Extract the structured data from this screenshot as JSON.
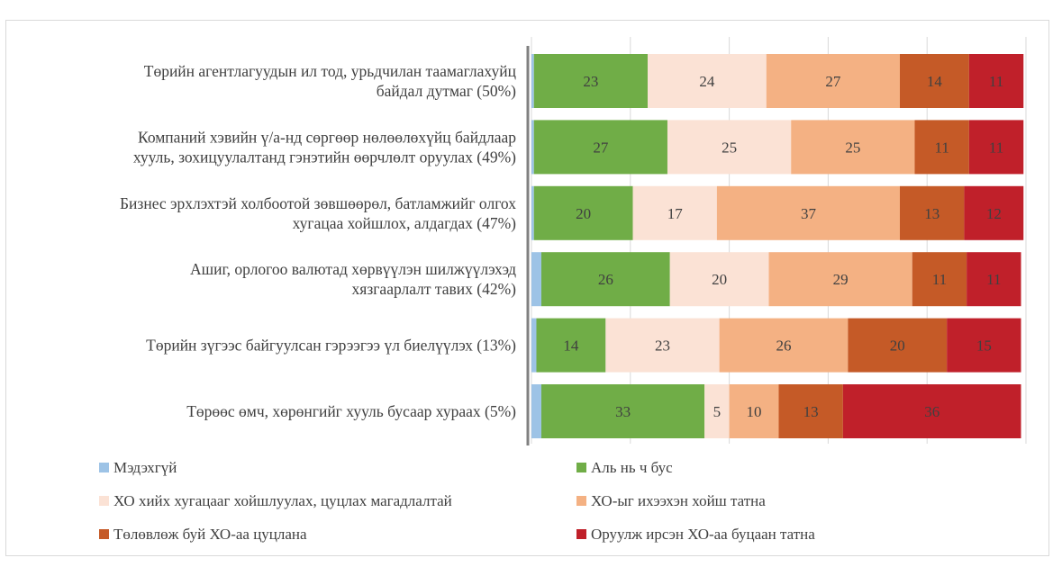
{
  "chart_data": {
    "type": "bar",
    "orientation": "horizontal",
    "stacked": true,
    "categories": [
      [
        "Төрийн агентлагуудын ил тод, урьдчилан таамаглахуйц",
        "байдал дутмаг (50%)"
      ],
      [
        "Компаний хэвийн ү/а-нд сөргөөр нөлөөлөхүйц байдлаар",
        "хууль, зохицуулалтанд гэнэтийн өөрчлөлт оруулах (49%)"
      ],
      [
        "Бизнес эрхлэхтэй холбоотой зөвшөөрөл, батламжийг олгох",
        "хугацаа хойшлох, алдагдах (47%)"
      ],
      [
        "Ашиг, орлогоо валютад хөрвүүлэн шилжүүлэхэд",
        "хязгаарлалт тавих (42%)"
      ],
      [
        "Төрийн зүгээс байгуулсан гэрээгээ үл биелүүлэх (13%)"
      ],
      [
        "Төрөөс өмч, хөрөнгийг хууль бусаар хураах (5%)"
      ]
    ],
    "series": [
      {
        "name": "Мэдэхгүй",
        "color": "#9dc3e6",
        "values": [
          0.5,
          0.5,
          0.5,
          2,
          1,
          2
        ],
        "labels": [
          "",
          "",
          "",
          "",
          "",
          ""
        ]
      },
      {
        "name": "Аль нь ч бус",
        "color": "#70ad47",
        "values": [
          23,
          27,
          20,
          26,
          14,
          33
        ],
        "labels": [
          "23",
          "27",
          "20",
          "26",
          "14",
          "33"
        ]
      },
      {
        "name": "ХО хийх хугацааг хойшлуулах, цуцлах магадлалтай",
        "color": "#fbe2d5",
        "values": [
          24,
          25,
          17,
          20,
          23,
          5
        ],
        "labels": [
          "24",
          "25",
          "17",
          "20",
          "23",
          "5"
        ]
      },
      {
        "name": "ХО-ыг ихээхэн хойш татна",
        "color": "#f4b183",
        "values": [
          27,
          25,
          37,
          29,
          26,
          10
        ],
        "labels": [
          "27",
          "25",
          "37",
          "29",
          "26",
          "10"
        ]
      },
      {
        "name": "Төлөвлөж буй ХО-аа цуцлана",
        "color": "#c55a27",
        "values": [
          14,
          11,
          13,
          11,
          20,
          13
        ],
        "labels": [
          "14",
          "11",
          "13",
          "11",
          "20",
          "13"
        ]
      },
      {
        "name": "Оруулж ирсэн ХО-аа буцаан татна",
        "color": "#c0202a",
        "values": [
          11,
          11,
          12,
          11,
          15,
          36
        ],
        "labels": [
          "11",
          "11",
          "12",
          "11",
          "15",
          "36"
        ]
      }
    ],
    "xlim": [
      0,
      100
    ],
    "grid": true,
    "legend_position": "bottom"
  }
}
